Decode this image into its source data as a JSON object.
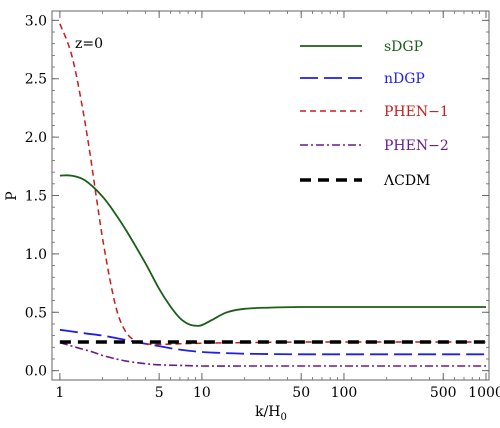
{
  "chart_data": {
    "type": "line",
    "xlabel": "k/H0",
    "xlabel_main": "k/H",
    "xlabel_sub": "0",
    "ylabel": "P",
    "annotation": "z=0",
    "xscale": "log",
    "xlim": [
      0.88,
      1050
    ],
    "ylim": [
      -0.08,
      3.08
    ],
    "xticks": [
      1,
      5,
      10,
      50,
      100,
      500,
      1000
    ],
    "xtick_labels": [
      "1",
      "5",
      "10",
      "50",
      "100",
      "500",
      "1000"
    ],
    "yticks": [
      0.0,
      0.5,
      1.0,
      1.5,
      2.0,
      2.5,
      3.0
    ],
    "ytick_labels": [
      "0.0",
      "0.5",
      "1.0",
      "1.5",
      "2.0",
      "2.5",
      "3.0"
    ],
    "grid": false,
    "legend_position": "top-right",
    "series": [
      {
        "name": "sDGP",
        "color": "#1a5e1a",
        "dash": "solid",
        "x": [
          1,
          1.2,
          1.5,
          2,
          2.5,
          3,
          4,
          5,
          6,
          7,
          8,
          9,
          10,
          12,
          15,
          20,
          30,
          50,
          100,
          300,
          1000
        ],
        "y": [
          1.67,
          1.67,
          1.63,
          1.49,
          1.33,
          1.18,
          0.92,
          0.7,
          0.55,
          0.45,
          0.4,
          0.385,
          0.39,
          0.44,
          0.5,
          0.53,
          0.54,
          0.545,
          0.545,
          0.545,
          0.545
        ]
      },
      {
        "name": "nDGP",
        "color": "#1f1fe6",
        "dash": "longdash",
        "x": [
          1,
          1.5,
          2,
          3,
          4,
          5,
          7,
          10,
          15,
          20,
          30,
          50,
          100,
          300,
          1000
        ],
        "y": [
          0.35,
          0.32,
          0.3,
          0.26,
          0.23,
          0.21,
          0.18,
          0.16,
          0.15,
          0.145,
          0.142,
          0.14,
          0.14,
          0.14,
          0.14
        ]
      },
      {
        "name": "PHEN−1",
        "color": "#c41e1e",
        "dash": "shortdash",
        "x": [
          1,
          1.2,
          1.4,
          1.6,
          1.8,
          2,
          2.3,
          2.6,
          3,
          3.5,
          4,
          5,
          7,
          10,
          20,
          50,
          100,
          300,
          1000
        ],
        "y": [
          2.97,
          2.72,
          2.34,
          1.92,
          1.5,
          1.13,
          0.72,
          0.46,
          0.31,
          0.25,
          0.23,
          0.225,
          0.23,
          0.235,
          0.24,
          0.245,
          0.245,
          0.245,
          0.245
        ]
      },
      {
        "name": "PHEN−2",
        "color": "#6a1b8a",
        "dash": "dashdot",
        "x": [
          1,
          1.3,
          1.7,
          2,
          2.5,
          3,
          4,
          5,
          7,
          10,
          20,
          50,
          100,
          300,
          1000
        ],
        "y": [
          0.24,
          0.2,
          0.16,
          0.13,
          0.1,
          0.08,
          0.06,
          0.05,
          0.045,
          0.04,
          0.04,
          0.04,
          0.04,
          0.04,
          0.04
        ]
      },
      {
        "name": "ΛCDM",
        "color": "#000000",
        "dash": "thickdash",
        "x": [
          1,
          1000
        ],
        "y": [
          0.245,
          0.245
        ]
      }
    ]
  }
}
